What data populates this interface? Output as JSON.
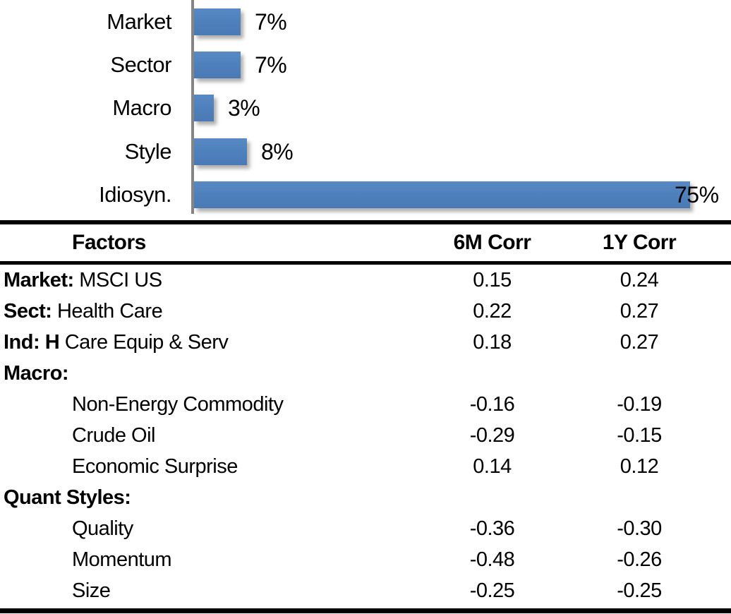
{
  "chart_data": {
    "type": "bar",
    "orientation": "horizontal",
    "title": "",
    "xlabel": "",
    "ylabel": "",
    "categories": [
      "Market",
      "Sector",
      "Macro",
      "Style",
      "Idiosyn."
    ],
    "values": [
      7,
      7,
      3,
      8,
      75
    ],
    "value_labels": [
      "7%",
      "7%",
      "3%",
      "8%",
      "75%"
    ],
    "unit": "percent",
    "xlim": [
      0,
      80
    ],
    "grid": "off",
    "legend": "none",
    "bar_color": "#4F81BD",
    "axis_color": "#858585"
  },
  "table": {
    "columns": [
      "Factors",
      "6M Corr",
      "1Y Corr"
    ],
    "rows": [
      {
        "label_bold": "Market:",
        "label_rest": " MSCI US",
        "indent": false,
        "corr_6m": "0.15",
        "corr_1y": "0.24"
      },
      {
        "label_bold": "Sect:",
        "label_rest": " Health Care",
        "indent": false,
        "corr_6m": "0.22",
        "corr_1y": "0.27"
      },
      {
        "label_bold": "Ind: H",
        "label_rest": " Care Equip & Serv",
        "indent": false,
        "corr_6m": "0.18",
        "corr_1y": "0.27"
      },
      {
        "label_bold": "Macro:",
        "label_rest": "",
        "indent": false,
        "corr_6m": "",
        "corr_1y": ""
      },
      {
        "label_bold": "",
        "label_rest": "Non-Energy Commodity",
        "indent": true,
        "corr_6m": "-0.16",
        "corr_1y": "-0.19"
      },
      {
        "label_bold": "",
        "label_rest": "Crude Oil",
        "indent": true,
        "corr_6m": "-0.29",
        "corr_1y": "-0.15"
      },
      {
        "label_bold": "",
        "label_rest": "Economic Surprise",
        "indent": true,
        "corr_6m": "0.14",
        "corr_1y": "0.12"
      },
      {
        "label_bold": "Quant Styles:",
        "label_rest": "",
        "indent": false,
        "corr_6m": "",
        "corr_1y": ""
      },
      {
        "label_bold": "",
        "label_rest": "Quality",
        "indent": true,
        "corr_6m": "-0.36",
        "corr_1y": "-0.30"
      },
      {
        "label_bold": "",
        "label_rest": "Momentum",
        "indent": true,
        "corr_6m": "-0.48",
        "corr_1y": "-0.26"
      },
      {
        "label_bold": "",
        "label_rest": "Size",
        "indent": true,
        "corr_6m": "-0.25",
        "corr_1y": "-0.25"
      }
    ]
  }
}
